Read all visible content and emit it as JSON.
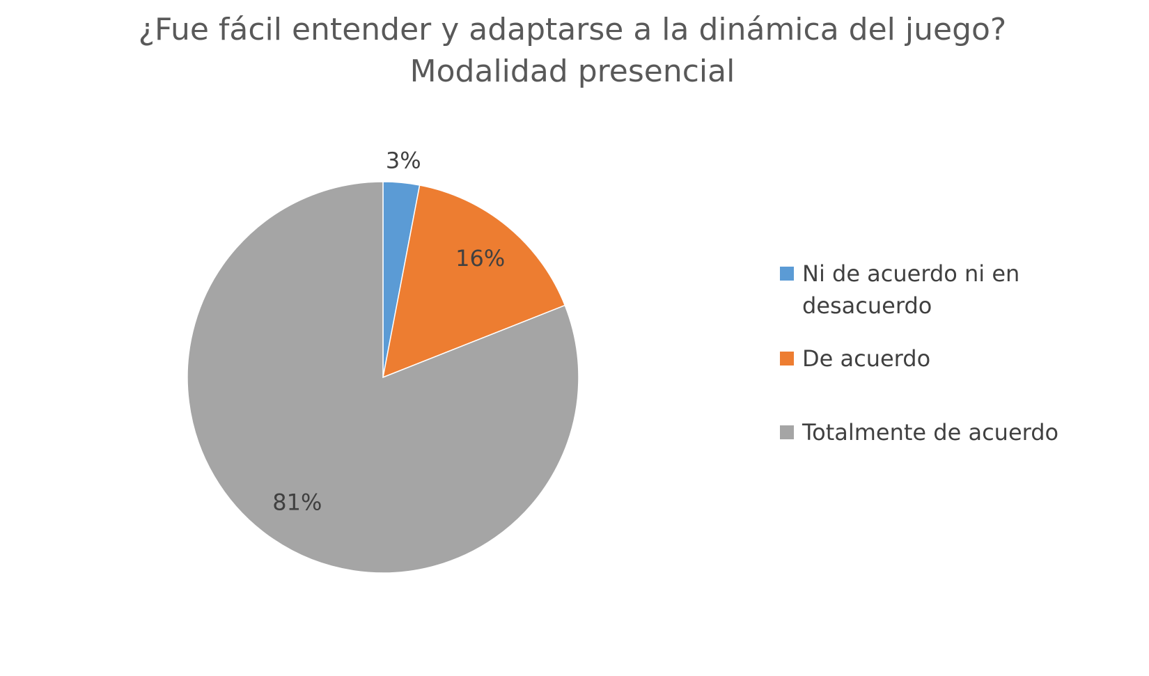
{
  "chart_data": {
    "type": "pie",
    "title": [
      "¿Fue fácil entender y adaptarse a la dinámica del juego?",
      "Modalidad presencial"
    ],
    "categories": [
      "Ni de acuerdo ni en desacuerdo",
      "De acuerdo",
      "Totalmente de acuerdo"
    ],
    "values": [
      3,
      16,
      81
    ],
    "value_labels": [
      "3%",
      "16%",
      "81%"
    ],
    "colors": [
      "#5b9bd5",
      "#ed7d31",
      "#a5a5a5"
    ],
    "legend": "right"
  }
}
